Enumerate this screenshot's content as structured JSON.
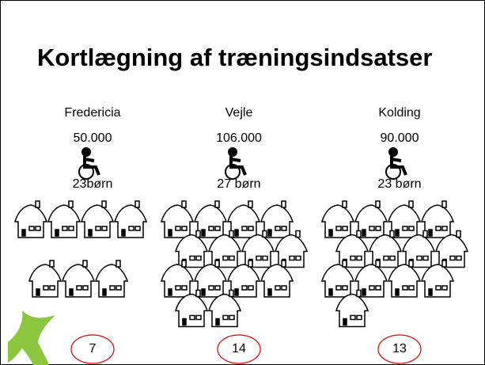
{
  "title": "Kortlægning af træningsindsatser",
  "columns": [
    {
      "city": "Fredericia",
      "population": "50.000",
      "children": "23børn",
      "count": 7
    },
    {
      "city": "Vejle",
      "population": "106.000",
      "children": "27 børn",
      "count": 14
    },
    {
      "city": "Kolding",
      "population": "90.000",
      "children": "23 børn",
      "count": 13
    }
  ]
}
